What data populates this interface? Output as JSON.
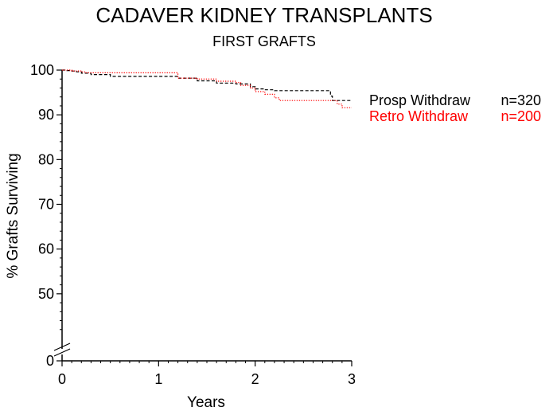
{
  "chart_data": {
    "type": "line",
    "title": "CADAVER KIDNEY TRANSPLANTS",
    "subtitle": "FIRST GRAFTS",
    "xlabel": "Years",
    "ylabel": "% Grafts Surviving",
    "xlim": [
      0,
      3
    ],
    "ylim": [
      0,
      100
    ],
    "y_axis_break": "between 0 and 40",
    "x_ticks": [
      "0",
      "1",
      "2",
      "3"
    ],
    "y_ticks": [
      "0",
      "50",
      "60",
      "70",
      "80",
      "90",
      "100"
    ],
    "grid": false,
    "legend_position": "right",
    "series": [
      {
        "name": "Prosp Withdraw",
        "n_label": "n=320",
        "color": "#000000",
        "line_style": "dashed",
        "x": [
          0,
          0.05,
          0.1,
          0.15,
          0.2,
          0.3,
          0.5,
          1.0,
          1.2,
          1.4,
          1.6,
          1.8,
          1.95,
          2.0,
          2.1,
          2.2,
          2.75,
          2.78,
          2.8,
          3.0
        ],
        "y": [
          100,
          99.9,
          99.8,
          99.6,
          99.3,
          99.0,
          98.6,
          98.6,
          98.2,
          97.6,
          97.1,
          96.9,
          96.3,
          95.8,
          95.6,
          95.4,
          95.4,
          94.2,
          93.2,
          93.2
        ]
      },
      {
        "name": "Retro Withdraw",
        "n_label": "n=200",
        "color": "#ff0000",
        "line_style": "dotted",
        "x": [
          0,
          0.1,
          0.2,
          0.25,
          1.07,
          1.2,
          1.4,
          1.6,
          1.8,
          1.85,
          1.95,
          2.0,
          2.1,
          2.2,
          2.25,
          2.8,
          2.85,
          2.9,
          3.0
        ],
        "y": [
          100,
          99.8,
          99.6,
          99.4,
          99.4,
          98.2,
          98.0,
          97.5,
          97.2,
          96.6,
          96.0,
          95.2,
          94.6,
          93.8,
          93.2,
          93.2,
          92.4,
          91.6,
          91.6
        ]
      }
    ]
  }
}
